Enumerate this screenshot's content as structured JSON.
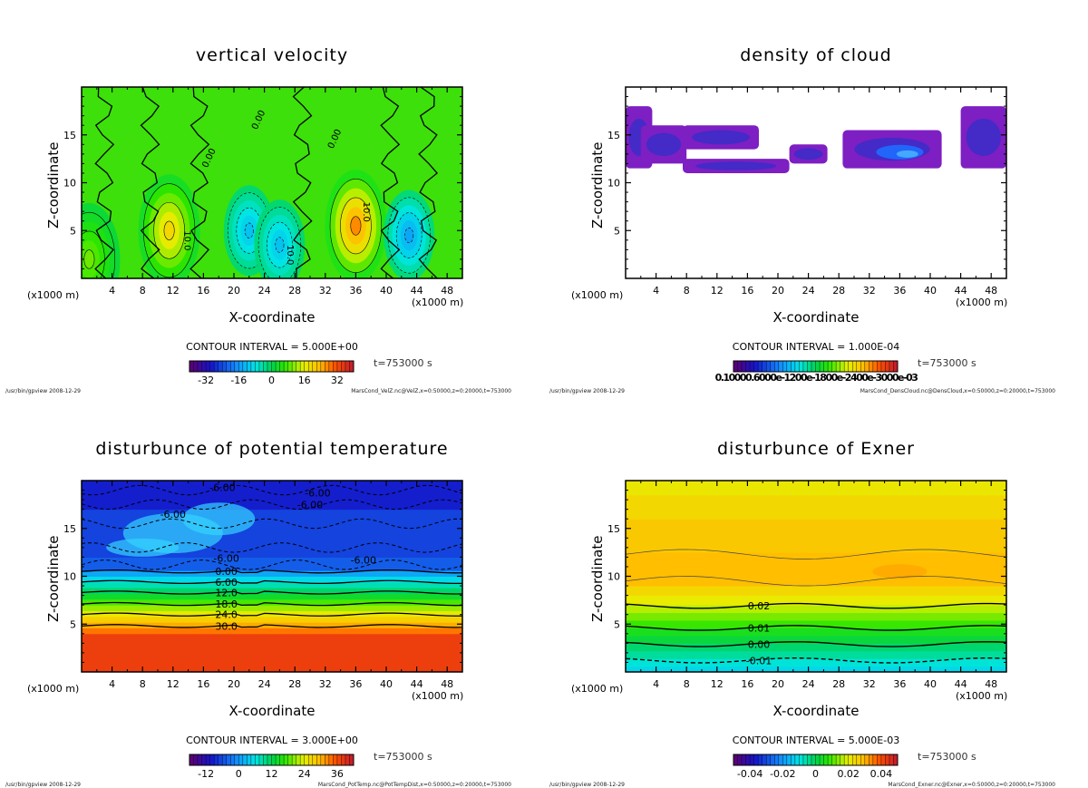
{
  "footer_program": "/usr/bin/gpview  2008-12-29",
  "time_label": "t=753000 s",
  "chart_data": [
    {
      "type": "heatmap",
      "title": "vertical velocity",
      "xlabel": "X-coordinate",
      "ylabel": "Z-coordinate",
      "x_unit_left": "(x1000 m)",
      "x_unit_right": "(x1000 m)",
      "xlim": [
        0,
        50
      ],
      "ylim": [
        0,
        20
      ],
      "xticks": [
        "4",
        "8",
        "12",
        "16",
        "20",
        "24",
        "28",
        "32",
        "36",
        "40",
        "44",
        "48"
      ],
      "yticks": [
        "5",
        "10",
        "15"
      ],
      "contour_interval": "CONTOUR INTERVAL = 5.000E+00",
      "colorbar_ticks": [
        "-32",
        "-16",
        "0",
        "16",
        "32"
      ],
      "colorbar_range": [
        -40,
        40
      ],
      "contour_labels": [
        "0.00",
        "0.00",
        "0.00",
        "10.0",
        "10.0",
        "10.0"
      ],
      "features": [
        {
          "x": 11.5,
          "z": 5.0,
          "value": 20
        },
        {
          "x": 36.0,
          "z": 5.5,
          "value": 28
        },
        {
          "x": 22.0,
          "z": 5.0,
          "value": -12
        },
        {
          "x": 26.0,
          "z": 3.5,
          "value": -12
        },
        {
          "x": 43.0,
          "z": 4.5,
          "value": -15
        },
        {
          "x": 1.0,
          "z": 2.0,
          "value": 10
        }
      ],
      "footer": "MarsCond_VelZ.nc@VelZ,x=0:50000,z=0:20000,t=753000"
    },
    {
      "type": "heatmap",
      "title": "density of cloud",
      "xlabel": "X-coordinate",
      "ylabel": "Z-coordinate",
      "x_unit_left": "(x1000 m)",
      "x_unit_right": "(x1000 m)",
      "xlim": [
        0,
        50
      ],
      "ylim": [
        0,
        20
      ],
      "xticks": [
        "4",
        "8",
        "12",
        "16",
        "20",
        "24",
        "28",
        "32",
        "36",
        "40",
        "44",
        "48"
      ],
      "yticks": [
        "5",
        "10",
        "15"
      ],
      "contour_interval": "CONTOUR INTERVAL = 1.000E-04",
      "colorbar_ticks_text": "0.10000.6000e-1200e-1800e-2400e-3000e-03",
      "cloud_regions": [
        {
          "x0": 0,
          "x1": 3.5,
          "z0": 11.5,
          "z1": 18
        },
        {
          "x0": 2,
          "x1": 8,
          "z0": 12,
          "z1": 16
        },
        {
          "x0": 7.5,
          "x1": 17.5,
          "z0": 13.5,
          "z1": 16
        },
        {
          "x0": 7.5,
          "x1": 21.5,
          "z0": 11,
          "z1": 12.5
        },
        {
          "x0": 21.5,
          "x1": 26.5,
          "z0": 12,
          "z1": 14
        },
        {
          "x0": 28.5,
          "x1": 41.5,
          "z0": 11.5,
          "z1": 15.5
        },
        {
          "x0": 44,
          "x1": 50,
          "z0": 11.5,
          "z1": 18
        }
      ],
      "footer": "MarsCond_DensCloud.nc@DensCloud,x=0:50000,z=0:20000,t=753000"
    },
    {
      "type": "heatmap",
      "title": "disturbunce of potential temperature",
      "xlabel": "X-coordinate",
      "ylabel": "Z-coordinate",
      "x_unit_left": "(x1000 m)",
      "x_unit_right": "(x1000 m)",
      "xlim": [
        0,
        50
      ],
      "ylim": [
        0,
        20
      ],
      "xticks": [
        "4",
        "8",
        "12",
        "16",
        "20",
        "24",
        "28",
        "32",
        "36",
        "40",
        "44",
        "48"
      ],
      "yticks": [
        "5",
        "10",
        "15"
      ],
      "contour_interval": "CONTOUR INTERVAL = 3.000E+00",
      "colorbar_ticks": [
        "-12",
        "0",
        "12",
        "24",
        "36"
      ],
      "colorbar_range": [
        -18,
        42
      ],
      "contour_levels": [
        {
          "z": 10.5,
          "label": "0.00"
        },
        {
          "z": 9.4,
          "label": "6.00"
        },
        {
          "z": 8.3,
          "label": "12.0"
        },
        {
          "z": 7.1,
          "label": "18.0"
        },
        {
          "z": 6.0,
          "label": "24.0"
        },
        {
          "z": 4.8,
          "label": "30.0"
        }
      ],
      "upper_labels": [
        "-6.00",
        "-6.00",
        "-6.00",
        "-6.00",
        "-6.00",
        "-6.00"
      ],
      "footer": "MarsCond_PotTemp.nc@PotTempDist,x=0:50000,z=0:20000,t=753000"
    },
    {
      "type": "heatmap",
      "title": "disturbunce of Exner",
      "xlabel": "X-coordinate",
      "ylabel": "Z-coordinate",
      "x_unit_left": "(x1000 m)",
      "x_unit_right": "(x1000 m)",
      "xlim": [
        0,
        50
      ],
      "ylim": [
        0,
        20
      ],
      "xticks": [
        "4",
        "8",
        "12",
        "16",
        "20",
        "24",
        "28",
        "32",
        "36",
        "40",
        "44",
        "48"
      ],
      "yticks": [
        "5",
        "10",
        "15"
      ],
      "contour_interval": "CONTOUR INTERVAL = 5.000E-03",
      "colorbar_ticks": [
        "-0.04",
        "-0.02",
        "0",
        "0.02",
        "0.04"
      ],
      "colorbar_range": [
        -0.05,
        0.05
      ],
      "contour_levels": [
        {
          "z": 6.9,
          "label": "0.02"
        },
        {
          "z": 4.6,
          "label": "0.01"
        },
        {
          "z": 2.9,
          "label": "0.00"
        },
        {
          "z": 1.2,
          "label": "-0.01"
        }
      ],
      "footer": "MarsCond_Exner.nc@Exner,x=0:50000,z=0:20000,t=753000"
    }
  ]
}
